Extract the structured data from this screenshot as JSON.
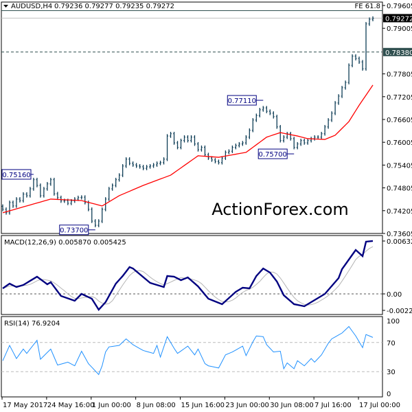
{
  "header": {
    "symbol": "AUDUSD,H4",
    "ohlc": "0.79236 0.79277 0.79235 0.79272",
    "fe_label": "FE 61.8",
    "watermark": "ActionForex.com"
  },
  "colors": {
    "bars": "#0e3d56",
    "ma": "#ff0000",
    "macd": "#000080",
    "signal": "#b4b4b4",
    "rsi": "#1e90ff",
    "annotation": "#000080",
    "watermark": "#cfcfcf"
  },
  "chart_data": [
    {
      "type": "ohlc",
      "title": "AUDUSD,H4",
      "ylim": [
        0.73605,
        0.79605
      ],
      "y_ticks": [
        "0.79605",
        "0.79005",
        "0.77805",
        "0.77205",
        "0.76605",
        "0.76005",
        "0.75405",
        "0.74805",
        "0.74205",
        "0.73605"
      ],
      "current_price": "0.79272",
      "level_line": "0.78380",
      "fe_level": 0.7947,
      "closes": [
        0.7424,
        0.7415,
        0.7442,
        0.7433,
        0.7451,
        0.7447,
        0.7464,
        0.746,
        0.7478,
        0.7502,
        0.7487,
        0.746,
        0.7478,
        0.7491,
        0.7502,
        0.7465,
        0.7455,
        0.7446,
        0.7447,
        0.744,
        0.7446,
        0.7451,
        0.7455,
        0.7456,
        0.7442,
        0.7424,
        0.7393,
        0.7382,
        0.7393,
        0.7424,
        0.7451,
        0.7478,
        0.7487,
        0.7502,
        0.7514,
        0.7538,
        0.7556,
        0.7545,
        0.7541,
        0.7538,
        0.7536,
        0.7532,
        0.7536,
        0.7538,
        0.7541,
        0.7545,
        0.7547,
        0.7556,
        0.7617,
        0.7623,
        0.7599,
        0.7587,
        0.7605,
        0.7614,
        0.7605,
        0.7614,
        0.7596,
        0.7581,
        0.7587,
        0.7568,
        0.7559,
        0.7554,
        0.755,
        0.7547,
        0.7559,
        0.7574,
        0.7577,
        0.7587,
        0.7592,
        0.7596,
        0.7599,
        0.7614,
        0.7632,
        0.7659,
        0.7671,
        0.7686,
        0.7691,
        0.7682,
        0.7677,
        0.7668,
        0.7641,
        0.7605,
        0.7614,
        0.7623,
        0.761,
        0.7587,
        0.7596,
        0.7605,
        0.7599,
        0.7605,
        0.761,
        0.7614,
        0.7614,
        0.7623,
        0.7641,
        0.7659,
        0.7677,
        0.7704,
        0.7722,
        0.7744,
        0.7758,
        0.7803,
        0.7827,
        0.7821,
        0.7812,
        0.7794,
        0.7912,
        0.7924,
        0.7927
      ],
      "moving_average": [
        [
          0,
          0.7415
        ],
        [
          7,
          0.7433
        ],
        [
          14,
          0.7451
        ],
        [
          23,
          0.7447
        ],
        [
          29,
          0.7433
        ],
        [
          34,
          0.746
        ],
        [
          41,
          0.7487
        ],
        [
          49,
          0.7514
        ],
        [
          57,
          0.7565
        ],
        [
          63,
          0.7561
        ],
        [
          71,
          0.7574
        ],
        [
          77,
          0.7614
        ],
        [
          81,
          0.7626
        ],
        [
          86,
          0.7617
        ],
        [
          89,
          0.761
        ],
        [
          94,
          0.7608
        ],
        [
          97,
          0.7619
        ],
        [
          101,
          0.7655
        ],
        [
          104,
          0.7698
        ],
        [
          108,
          0.7751
        ]
      ],
      "annotations": [
        {
          "label": "0.75160",
          "index": 9,
          "value": 0.7516
        },
        {
          "label": "0.73700",
          "index": 27,
          "value": 0.737
        },
        {
          "label": "0.77110",
          "index": 76,
          "value": 0.7711
        },
        {
          "label": "0.75700",
          "index": 85,
          "value": 0.757
        }
      ]
    },
    {
      "type": "line",
      "title": "MACD(12,26,9) 0.005870 0.005425",
      "ylim": [
        -0.002253,
        0.006326
      ],
      "y_ticks": [
        "0.006326",
        "0.00",
        "-0.002253"
      ],
      "macd": [
        [
          0,
          0.00066
        ],
        [
          2,
          0.00123
        ],
        [
          4,
          0.00082
        ],
        [
          6,
          0.00107
        ],
        [
          10,
          0.00206
        ],
        [
          13,
          0.00115
        ],
        [
          14,
          0.0014
        ],
        [
          17,
          -0.00025
        ],
        [
          21,
          -0.00082
        ],
        [
          23,
          0.0
        ],
        [
          26,
          -0.00058
        ],
        [
          28,
          -0.00189
        ],
        [
          30,
          -0.00099
        ],
        [
          33,
          0.00123
        ],
        [
          35,
          0.00214
        ],
        [
          37,
          0.00321
        ],
        [
          38,
          0.00304
        ],
        [
          43,
          0.00132
        ],
        [
          47,
          0.00082
        ],
        [
          48,
          0.00214
        ],
        [
          50,
          0.00206
        ],
        [
          52,
          0.00164
        ],
        [
          54,
          0.00197
        ],
        [
          57,
          0.0009
        ],
        [
          60,
          -0.00058
        ],
        [
          64,
          -0.00123
        ],
        [
          68,
          0.00025
        ],
        [
          70,
          0.00074
        ],
        [
          72,
          0.00066
        ],
        [
          74,
          0.00214
        ],
        [
          76,
          0.00304
        ],
        [
          78,
          0.00255
        ],
        [
          80,
          0.00148
        ],
        [
          82,
          -0.00016
        ],
        [
          85,
          -0.00123
        ],
        [
          88,
          -0.00148
        ],
        [
          91,
          -0.00074
        ],
        [
          94,
          0.0
        ],
        [
          98,
          0.00189
        ],
        [
          99,
          0.00296
        ],
        [
          103,
          0.00526
        ],
        [
          105,
          0.00452
        ],
        [
          106,
          0.00625
        ],
        [
          108,
          0.00633
        ]
      ]
    },
    {
      "type": "line",
      "title": "RSI(14) 76.9204",
      "ylim": [
        0,
        100
      ],
      "y_ticks": [
        "100",
        "70",
        "30",
        "0"
      ],
      "levels": [
        70,
        30
      ],
      "rsi": [
        [
          0,
          45
        ],
        [
          2,
          66
        ],
        [
          4,
          48
        ],
        [
          6,
          61
        ],
        [
          7,
          55
        ],
        [
          10,
          73
        ],
        [
          11,
          47
        ],
        [
          14,
          61
        ],
        [
          16,
          39
        ],
        [
          19,
          43
        ],
        [
          21,
          38
        ],
        [
          23,
          58
        ],
        [
          25,
          41
        ],
        [
          28,
          26
        ],
        [
          29,
          38
        ],
        [
          30,
          57
        ],
        [
          31,
          64
        ],
        [
          34,
          66
        ],
        [
          36,
          75
        ],
        [
          38,
          67
        ],
        [
          41,
          59
        ],
        [
          44,
          55
        ],
        [
          45,
          66
        ],
        [
          46,
          50
        ],
        [
          48,
          78
        ],
        [
          50,
          62
        ],
        [
          51,
          55
        ],
        [
          54,
          65
        ],
        [
          56,
          53
        ],
        [
          57,
          61
        ],
        [
          59,
          41
        ],
        [
          60,
          38
        ],
        [
          63,
          35
        ],
        [
          65,
          53
        ],
        [
          67,
          57
        ],
        [
          70,
          65
        ],
        [
          71,
          52
        ],
        [
          73,
          71
        ],
        [
          74,
          79
        ],
        [
          76,
          78
        ],
        [
          77,
          67
        ],
        [
          79,
          57
        ],
        [
          81,
          58
        ],
        [
          82,
          34
        ],
        [
          83,
          42
        ],
        [
          85,
          34
        ],
        [
          86,
          45
        ],
        [
          88,
          38
        ],
        [
          90,
          48
        ],
        [
          91,
          43
        ],
        [
          93,
          53
        ],
        [
          95,
          69
        ],
        [
          96,
          75
        ],
        [
          99,
          83
        ],
        [
          101,
          92
        ],
        [
          103,
          79
        ],
        [
          105,
          63
        ],
        [
          106,
          81
        ],
        [
          108,
          77
        ]
      ]
    }
  ],
  "x_axis": {
    "labels": [
      "17 May 2017",
      "24 May 16:00",
      "1 Jun 00:00",
      "8 Jun 08:00",
      "15 Jun 16:00",
      "23 Jun 00:00",
      "30 Jun 08:00",
      "7 Jul 16:00",
      "17 Jul 00:00"
    ],
    "label_indices": [
      0,
      13,
      26,
      39,
      52,
      65,
      78,
      91,
      104
    ]
  }
}
